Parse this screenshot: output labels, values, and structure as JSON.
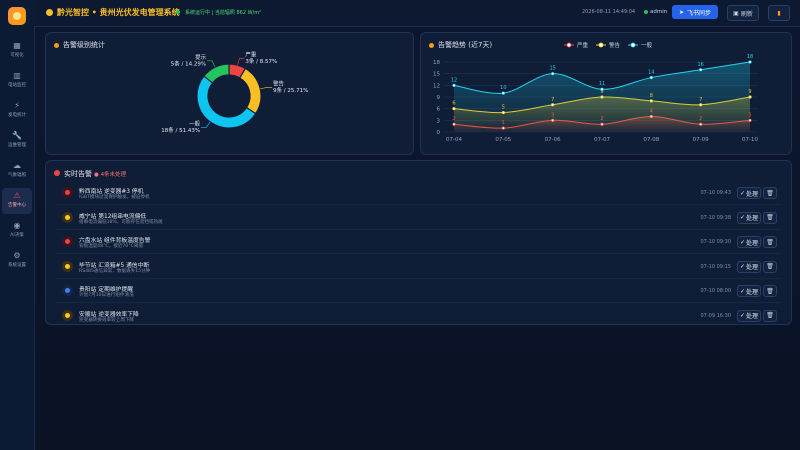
{
  "header": {
    "title": "黔光智控 • 贵州光伏发电管理系统",
    "status": "系统运行中 | 当前辐照 862 W/m²",
    "datetime": "2026-08-11 14:49:04",
    "user": "admin",
    "sync_button": "飞书同步",
    "refresh_button": "刷新"
  },
  "sidebar": {
    "items": [
      "可视化",
      "电站监控",
      "发电统计",
      "运维管理",
      "气象辐照",
      "告警中心",
      "AI决策",
      "系统设置"
    ],
    "active": 5
  },
  "chart_data": [
    {
      "type": "pie",
      "title": "告警级别统计",
      "categories": [
        "严重",
        "警告",
        "一般",
        "提示"
      ],
      "values": [
        3,
        9,
        18,
        5
      ],
      "value_labels": [
        "3条 / 8.57%",
        "9条 / 25.71%",
        "18条 / 51.43%",
        "5条 / 14.29%"
      ],
      "colors": [
        "#ef4444",
        "#fbbf24",
        "#0ec5f0",
        "#22c55e"
      ]
    },
    {
      "type": "line",
      "title": "告警趋势 (近7天)",
      "x": [
        "07-04",
        "07-05",
        "07-06",
        "07-07",
        "07-08",
        "07-09",
        "07-10"
      ],
      "series": [
        {
          "name": "严重",
          "color": "#ef4444",
          "values": [
            2,
            1,
            3,
            2,
            4,
            2,
            3
          ]
        },
        {
          "name": "警告",
          "color": "#facc15",
          "values": [
            6,
            5,
            7,
            9,
            8,
            7,
            9
          ]
        },
        {
          "name": "一般",
          "color": "#22d3ee",
          "values": [
            12,
            10,
            15,
            11,
            14,
            16,
            18
          ]
        }
      ],
      "ylim": [
        0,
        18
      ],
      "yticks": [
        0,
        3,
        6,
        9,
        12,
        15,
        18
      ],
      "grid": true,
      "legend": "top"
    }
  ],
  "alerts": {
    "title": "实时告警",
    "badge": "4条未处理",
    "action": "处理",
    "rows": [
      {
        "title": "黔西南站 逆变器#3 停机",
        "detail": "IGBT模块过温保护触发，被迫停机",
        "time": "07-10 09:43",
        "level": "critical"
      },
      {
        "title": "威宁站 第12组串电流偏低",
        "detail": "组串电流偏低18%，可能存在遮挡或热斑",
        "time": "07-10 09:38",
        "level": "warning"
      },
      {
        "title": "六盘水站 组件背板温度告警",
        "detail": "背板温度68°C，接近70°C阈值",
        "time": "07-10 09:30",
        "level": "critical"
      },
      {
        "title": "毕节站 汇流箱#5 通信中断",
        "detail": "RS485通信异常，数据丢失15分钟",
        "time": "07-10 09:15",
        "level": "warning"
      },
      {
        "title": "贵阳站 定期维护提醒",
        "detail": "计划7月10日进行组件清洗",
        "time": "07-10 08:00",
        "level": "info"
      },
      {
        "title": "安顺站 逆变器效率下降",
        "detail": "逆变器转换效率较上周下降",
        "time": "07-09 16:30",
        "level": "warning"
      }
    ]
  }
}
